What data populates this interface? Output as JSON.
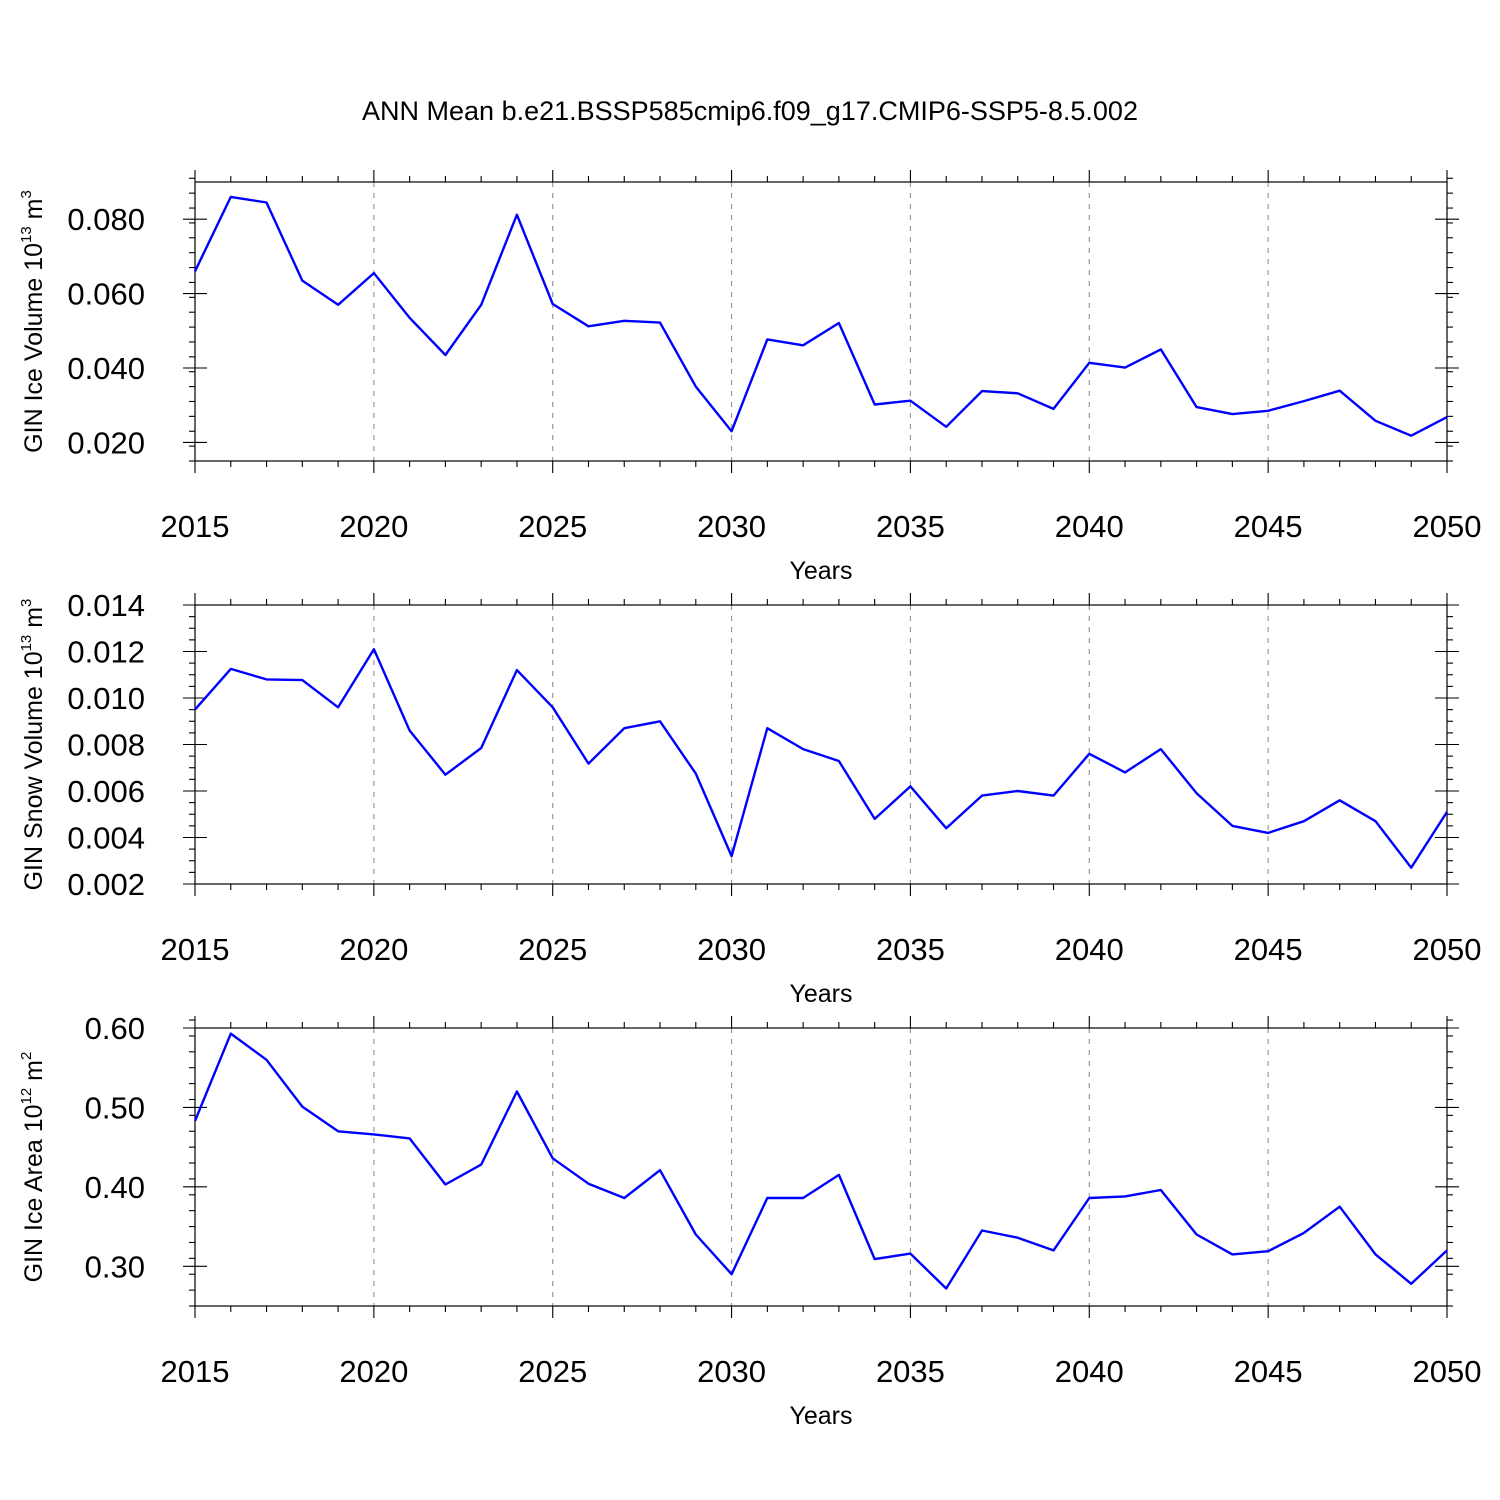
{
  "title": "ANN Mean b.e21.BSSP585cmip6.f09_g17.CMIP6-SSP5-8.5.002",
  "colors": {
    "line": "#0000ff",
    "grid": "#999999",
    "axes": "#000000"
  },
  "chart_data": [
    {
      "type": "line",
      "title": "ANN Mean b.e21.BSSP585cmip6.f09_g17.CMIP6-SSP5-8.5.002",
      "xlabel": "Years",
      "ylabel": "GIN Ice Volume 10",
      "ylabel_exp": "13",
      "ylabel_unit": " m",
      "ylabel_unit_exp": "3",
      "xlim": [
        2015,
        2050
      ],
      "ylim": [
        0.015,
        0.09
      ],
      "xticks": [
        2015,
        2020,
        2025,
        2030,
        2035,
        2040,
        2045,
        2050
      ],
      "xtick_labels": [
        "2015",
        "2020",
        "2025",
        "2030",
        "2035",
        "2040",
        "2045",
        "2050"
      ],
      "yticks": [
        0.02,
        0.04,
        0.06,
        0.08
      ],
      "ytick_labels": [
        "0.020",
        "0.040",
        "0.060",
        "0.080"
      ],
      "yminor_step": 0.004,
      "x": [
        2015,
        2016,
        2017,
        2018,
        2019,
        2020,
        2021,
        2022,
        2023,
        2024,
        2025,
        2026,
        2027,
        2028,
        2029,
        2030,
        2031,
        2032,
        2033,
        2034,
        2035,
        2036,
        2037,
        2038,
        2039,
        2040,
        2041,
        2042,
        2043,
        2044,
        2045,
        2046,
        2047,
        2048,
        2049,
        2050
      ],
      "values": [
        0.066,
        0.086,
        0.0845,
        0.0635,
        0.057,
        0.0655,
        0.0535,
        0.0435,
        0.057,
        0.0812,
        0.0572,
        0.0512,
        0.0527,
        0.0522,
        0.035,
        0.023,
        0.0477,
        0.0461,
        0.0521,
        0.0302,
        0.0312,
        0.0242,
        0.0338,
        0.0332,
        0.029,
        0.0414,
        0.0401,
        0.045,
        0.0295,
        0.0276,
        0.0285,
        0.0311,
        0.0339,
        0.0258,
        0.0218,
        0.0268
      ]
    },
    {
      "type": "line",
      "xlabel": "Years",
      "ylabel": "GIN Snow Volume 10",
      "ylabel_exp": "13",
      "ylabel_unit": " m",
      "ylabel_unit_exp": "3",
      "xlim": [
        2015,
        2050
      ],
      "ylim": [
        0.002,
        0.014
      ],
      "xticks": [
        2015,
        2020,
        2025,
        2030,
        2035,
        2040,
        2045,
        2050
      ],
      "xtick_labels": [
        "2015",
        "2020",
        "2025",
        "2030",
        "2035",
        "2040",
        "2045",
        "2050"
      ],
      "yticks": [
        0.002,
        0.004,
        0.006,
        0.008,
        0.01,
        0.012,
        0.014
      ],
      "ytick_labels": [
        "0.002",
        "0.004",
        "0.006",
        "0.008",
        "0.010",
        "0.012",
        "0.014"
      ],
      "yminor_step": 0.0005,
      "x": [
        2015,
        2016,
        2017,
        2018,
        2019,
        2020,
        2021,
        2022,
        2023,
        2024,
        2025,
        2026,
        2027,
        2028,
        2029,
        2030,
        2031,
        2032,
        2033,
        2034,
        2035,
        2036,
        2037,
        2038,
        2039,
        2040,
        2041,
        2042,
        2043,
        2044,
        2045,
        2046,
        2047,
        2048,
        2049,
        2050
      ],
      "values": [
        0.0095,
        0.01125,
        0.0108,
        0.01077,
        0.0096,
        0.0121,
        0.0086,
        0.0067,
        0.00785,
        0.0112,
        0.0096,
        0.00718,
        0.0087,
        0.009,
        0.00675,
        0.0032,
        0.0087,
        0.0078,
        0.00729,
        0.0048,
        0.0062,
        0.0044,
        0.0058,
        0.006,
        0.0058,
        0.0076,
        0.0068,
        0.0078,
        0.0059,
        0.0045,
        0.0042,
        0.0047,
        0.0056,
        0.0047,
        0.0027,
        0.0051
      ]
    },
    {
      "type": "line",
      "xlabel": "Years",
      "ylabel": "GIN Ice Area 10",
      "ylabel_exp": "12",
      "ylabel_unit": " m",
      "ylabel_unit_exp": "2",
      "xlim": [
        2015,
        2050
      ],
      "ylim": [
        0.25,
        0.6
      ],
      "xticks": [
        2015,
        2020,
        2025,
        2030,
        2035,
        2040,
        2045,
        2050
      ],
      "xtick_labels": [
        "2015",
        "2020",
        "2025",
        "2030",
        "2035",
        "2040",
        "2045",
        "2050"
      ],
      "yticks": [
        0.3,
        0.4,
        0.5,
        0.6
      ],
      "ytick_labels": [
        "0.30",
        "0.40",
        "0.50",
        "0.60"
      ],
      "yminor_step": 0.02,
      "x": [
        2015,
        2016,
        2017,
        2018,
        2019,
        2020,
        2021,
        2022,
        2023,
        2024,
        2025,
        2026,
        2027,
        2028,
        2029,
        2030,
        2031,
        2032,
        2033,
        2034,
        2035,
        2036,
        2037,
        2038,
        2039,
        2040,
        2041,
        2042,
        2043,
        2044,
        2045,
        2046,
        2047,
        2048,
        2049,
        2050
      ],
      "values": [
        0.483,
        0.593,
        0.56,
        0.501,
        0.47,
        0.466,
        0.461,
        0.403,
        0.428,
        0.52,
        0.436,
        0.404,
        0.386,
        0.421,
        0.34,
        0.29,
        0.386,
        0.386,
        0.415,
        0.309,
        0.316,
        0.272,
        0.345,
        0.336,
        0.32,
        0.386,
        0.388,
        0.396,
        0.34,
        0.315,
        0.319,
        0.342,
        0.375,
        0.315,
        0.278,
        0.32
      ]
    }
  ]
}
